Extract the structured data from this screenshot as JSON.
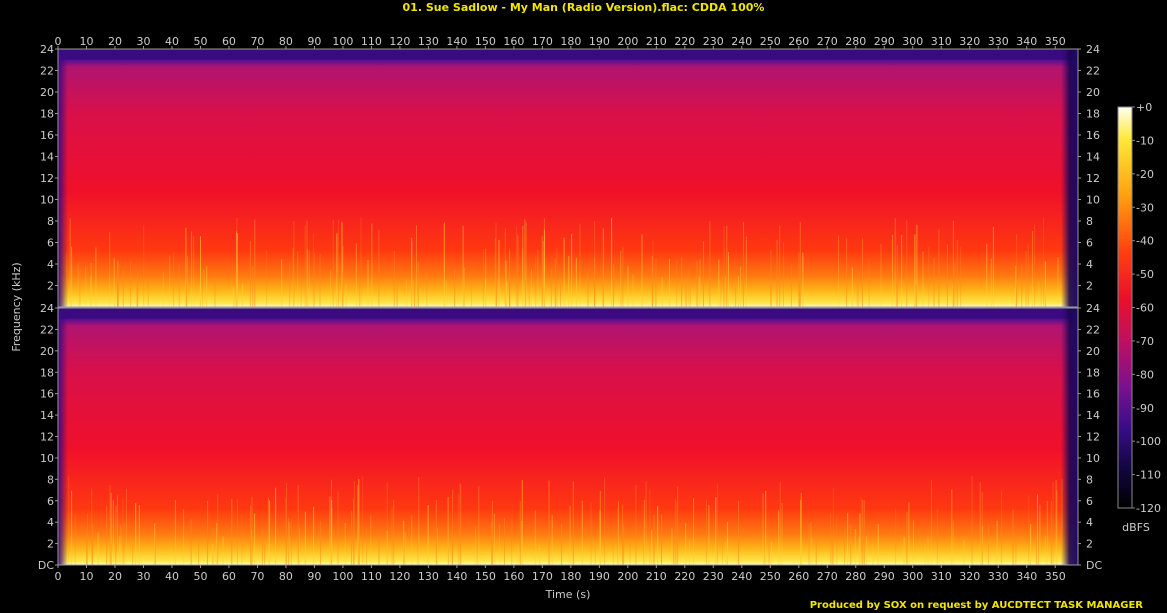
{
  "title": "01. Sue Sadlow - My Man (Radio Version).flac: CDDA 100%",
  "footer": "Produced by SOX on request by AUCDTECT TASK MANAGER",
  "chart_data": {
    "type": "heatmap",
    "xlabel": "Time (s)",
    "ylabel": "Frequency (kHz)",
    "x_ticks": [
      0,
      10,
      20,
      30,
      40,
      50,
      60,
      70,
      80,
      90,
      100,
      110,
      120,
      130,
      140,
      150,
      160,
      170,
      180,
      190,
      200,
      210,
      220,
      230,
      240,
      250,
      260,
      270,
      280,
      290,
      300,
      310,
      320,
      330,
      340,
      350
    ],
    "xlim": [
      0,
      358
    ],
    "y_ticks": [
      "DC",
      "2",
      "4",
      "6",
      "8",
      "10",
      "12",
      "14",
      "16",
      "18",
      "20",
      "22",
      "24"
    ],
    "ylim": [
      0,
      24
    ],
    "channels": 2,
    "colorbar": {
      "label": "dBFS",
      "ticks": [
        "+0",
        "-10",
        "-20",
        "-30",
        "-40",
        "-50",
        "-60",
        "-70",
        "-80",
        "-90",
        "-100",
        "-110",
        "-120"
      ],
      "range": [
        -120,
        0
      ]
    },
    "cutoff_kHz": 23
  },
  "colors": {
    "title": "#f2e600",
    "axis_text": "#cccccc",
    "border": "#999999"
  }
}
